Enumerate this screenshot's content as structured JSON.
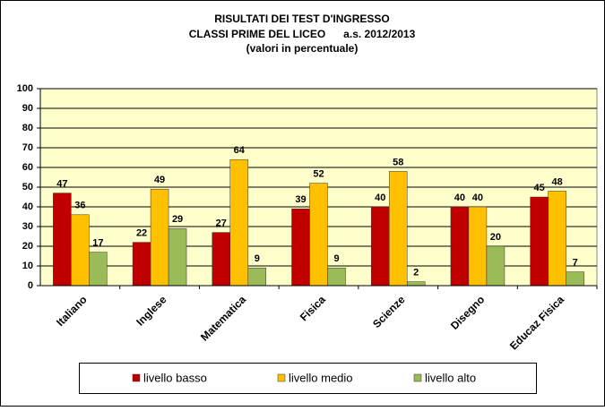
{
  "chart_data": {
    "type": "bar",
    "title": "RISULTATI DEI TEST D'INGRESSO",
    "subtitle": "CLASSI PRIME DEL LICEO      a.s. 2012/2013",
    "note": "(valori in percentuale)",
    "categories": [
      "Italiano",
      "Inglese",
      "Matematica",
      "Fisica",
      "Scienze",
      "Disegno",
      "Educaz Fisica"
    ],
    "series": [
      {
        "name": "livello basso",
        "color": "#c00000",
        "values": [
          47,
          22,
          27,
          39,
          40,
          40,
          45
        ]
      },
      {
        "name": "livello medio",
        "color": "#ffc000",
        "values": [
          36,
          49,
          64,
          52,
          58,
          40,
          48
        ]
      },
      {
        "name": "livello alto",
        "color": "#9bbb59",
        "values": [
          17,
          29,
          9,
          9,
          2,
          20,
          7
        ]
      }
    ],
    "ylim": [
      0,
      100
    ],
    "yticks": [
      0,
      10,
      20,
      30,
      40,
      50,
      60,
      70,
      80,
      90,
      100
    ],
    "grid": true,
    "legend": "bottom",
    "plot_background": "#ffffcc"
  }
}
